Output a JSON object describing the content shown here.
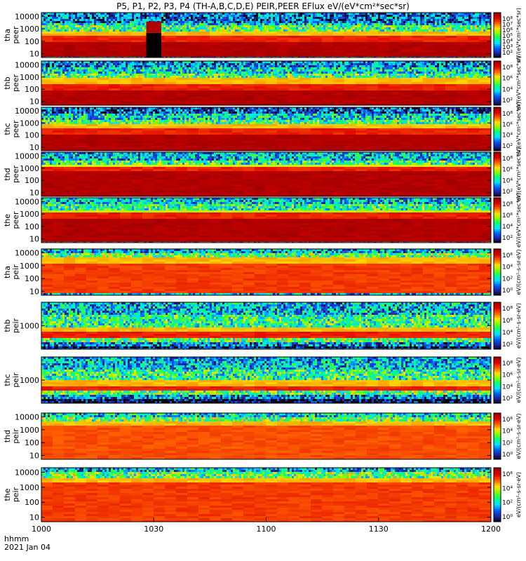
{
  "title": "P5, P1, P2, P3, P4 (TH-A,B,C,D,E) PEIR,PEER EFlux eV/(eV*cm²*sec*sr)",
  "colors": {
    "background": "#ffffff",
    "axis": "#000000",
    "title_text": "#000000",
    "colormap": [
      "#000000",
      "#2020a0",
      "#0060ff",
      "#00e0ff",
      "#00ff80",
      "#80ff00",
      "#ffe000",
      "#ff6000",
      "#e00000",
      "#a00000"
    ]
  },
  "xaxis": {
    "tick_labels": [
      "1000",
      "1030",
      "1100",
      "1130",
      "1200"
    ],
    "corner_label_line1": "hhmm",
    "corner_label_line2": "2021 Jan 04"
  },
  "chart_data": {
    "type": "heatmap",
    "time_range": [
      "10:00",
      "12:00"
    ],
    "x_ticks": [
      "1000",
      "1030",
      "1100",
      "1130",
      "1200"
    ],
    "panels": [
      {
        "id": "tha-peer",
        "ylabel_line1": "tha",
        "ylabel_line2": "peer",
        "y_ticks": [
          "10000",
          "1000",
          "100",
          "10"
        ],
        "cb_ticks": [
          "10⁸",
          "10⁷",
          "10⁶",
          "10⁵",
          "10⁴",
          "10³",
          "10²"
        ],
        "cb_label": "eV/(eV*cm²*sec*sr)",
        "y_log_range": [
          5,
          20000
        ],
        "layers": [
          [
            0.0,
            0.35,
            0.97
          ],
          [
            0.35,
            0.5,
            0.85
          ],
          [
            0.5,
            0.6,
            0.7
          ],
          [
            0.6,
            0.7,
            0.48
          ],
          [
            0.7,
            0.78,
            0.35
          ],
          [
            0.78,
            1.0,
            0.22
          ]
        ],
        "gap_interval": [
          "10:28",
          "10:32"
        ]
      },
      {
        "id": "thb-peer",
        "ylabel_line1": "thb",
        "ylabel_line2": "peer",
        "y_ticks": [
          "10000",
          "1000",
          "100",
          "10"
        ],
        "cb_ticks": [
          "10⁸",
          "10⁶",
          "10⁴",
          "10²"
        ],
        "cb_label": "eV/(eV*cm²*sec*sr)",
        "y_log_range": [
          5,
          20000
        ],
        "layers": [
          [
            0.0,
            0.35,
            0.97
          ],
          [
            0.35,
            0.5,
            0.85
          ],
          [
            0.5,
            0.6,
            0.7
          ],
          [
            0.6,
            0.72,
            0.48
          ],
          [
            0.72,
            0.85,
            0.35
          ],
          [
            0.85,
            1.0,
            0.25
          ]
        ]
      },
      {
        "id": "thc-peer",
        "ylabel_line1": "thc",
        "ylabel_line2": "peer",
        "y_ticks": [
          "10000",
          "1000",
          "100",
          "10"
        ],
        "cb_ticks": [
          "10⁸",
          "10⁶",
          "10⁴",
          "10²"
        ],
        "cb_label": "eV/(eV*cm²*sec*sr)",
        "y_log_range": [
          5,
          20000
        ],
        "layers": [
          [
            0.0,
            0.35,
            0.97
          ],
          [
            0.35,
            0.5,
            0.85
          ],
          [
            0.5,
            0.6,
            0.7
          ],
          [
            0.6,
            0.72,
            0.48
          ],
          [
            0.72,
            0.85,
            0.35
          ],
          [
            0.85,
            1.0,
            0.18
          ]
        ]
      },
      {
        "id": "thd-peer",
        "ylabel_line1": "thd",
        "ylabel_line2": "peer",
        "y_ticks": [
          "10000",
          "1000",
          "100",
          "10"
        ],
        "cb_ticks": [
          "10⁸",
          "10⁶",
          "10⁴",
          "10²"
        ],
        "cb_label": "eV/(eV*cm²*sec*sr)",
        "y_log_range": [
          5,
          20000
        ],
        "layers": [
          [
            0.0,
            0.55,
            0.97
          ],
          [
            0.55,
            0.65,
            0.85
          ],
          [
            0.65,
            0.72,
            0.65
          ],
          [
            0.72,
            0.82,
            0.45
          ],
          [
            0.82,
            1.0,
            0.3
          ]
        ]
      },
      {
        "id": "the-peer",
        "ylabel_line1": "the",
        "ylabel_line2": "peer",
        "y_ticks": [
          "10000",
          "1000",
          "100",
          "10"
        ],
        "cb_ticks": [
          "10⁸",
          "10⁶",
          "10⁴",
          "10²"
        ],
        "cb_label": "eV/(eV*cm²*sec*sr)",
        "y_log_range": [
          5,
          20000
        ],
        "layers": [
          [
            0.0,
            0.55,
            0.97
          ],
          [
            0.55,
            0.66,
            0.85
          ],
          [
            0.66,
            0.74,
            0.6
          ],
          [
            0.74,
            0.84,
            0.45
          ],
          [
            0.84,
            1.0,
            0.32
          ]
        ]
      },
      {
        "id": "tha-peir",
        "ylabel_line1": "tha",
        "ylabel_line2": "peir",
        "y_ticks": [
          "10000",
          "1000",
          "100",
          "10"
        ],
        "cb_ticks": [
          "10⁶",
          "10⁴",
          "10²",
          "10⁰"
        ],
        "cb_label": "eV/(cm²-s-sr-eV)",
        "y_log_range": [
          5,
          20000
        ],
        "layers": [
          [
            0.0,
            0.05,
            0.3
          ],
          [
            0.05,
            0.7,
            0.82
          ],
          [
            0.7,
            0.82,
            0.7
          ],
          [
            0.82,
            0.9,
            0.5
          ],
          [
            0.9,
            1.0,
            0.3
          ]
        ]
      },
      {
        "id": "thb-peir",
        "ylabel_line1": "thb",
        "ylabel_line2": "peir",
        "y_ticks": [
          "1000"
        ],
        "cb_ticks": [
          "10⁸",
          "10⁶",
          "10⁴",
          "10²"
        ],
        "cb_label": "eV/(cm²-s-sr-eV)",
        "y_log_range": [
          5,
          20000
        ],
        "layers": [
          [
            0.0,
            0.08,
            0.05
          ],
          [
            0.08,
            0.16,
            0.25
          ],
          [
            0.16,
            0.26,
            0.5
          ],
          [
            0.26,
            0.36,
            0.85
          ],
          [
            0.36,
            0.46,
            0.7
          ],
          [
            0.46,
            0.72,
            0.45
          ],
          [
            0.72,
            1.0,
            0.3
          ]
        ]
      },
      {
        "id": "thc-peir",
        "ylabel_line1": "thc",
        "ylabel_line2": "peir",
        "y_ticks": [
          "1000"
        ],
        "cb_ticks": [
          "10⁸",
          "10⁶",
          "10⁴",
          "10²"
        ],
        "cb_label": "eV/(cm²-s-sr-eV)",
        "y_log_range": [
          5,
          20000
        ],
        "layers": [
          [
            0.0,
            0.08,
            0.05
          ],
          [
            0.08,
            0.16,
            0.25
          ],
          [
            0.16,
            0.26,
            0.5
          ],
          [
            0.26,
            0.38,
            0.85
          ],
          [
            0.38,
            0.48,
            0.7
          ],
          [
            0.48,
            0.75,
            0.45
          ],
          [
            0.75,
            1.0,
            0.3
          ]
        ]
      },
      {
        "id": "thd-peir",
        "ylabel_line1": "thd",
        "ylabel_line2": "peir",
        "y_ticks": [
          "10000",
          "1000",
          "100",
          "10"
        ],
        "cb_ticks": [
          "10⁶",
          "10⁴",
          "10²",
          "10⁰"
        ],
        "cb_label": "eV/(cm²-s-sr-eV)",
        "y_log_range": [
          5,
          20000
        ],
        "layers": [
          [
            0.0,
            0.72,
            0.8
          ],
          [
            0.72,
            0.82,
            0.7
          ],
          [
            0.82,
            0.92,
            0.5
          ],
          [
            0.92,
            1.0,
            0.35
          ]
        ]
      },
      {
        "id": "the-peir",
        "ylabel_line1": "the",
        "ylabel_line2": "peir",
        "y_ticks": [
          "10000",
          "1000",
          "100",
          "10"
        ],
        "cb_ticks": [
          "10⁶",
          "10⁴",
          "10²",
          "10⁰"
        ],
        "cb_label": "eV/(cm²-s-sr-eV)",
        "y_log_range": [
          5,
          20000
        ],
        "layers": [
          [
            0.0,
            0.72,
            0.82
          ],
          [
            0.72,
            0.82,
            0.7
          ],
          [
            0.82,
            0.92,
            0.5
          ],
          [
            0.92,
            1.0,
            0.3
          ]
        ]
      }
    ]
  }
}
